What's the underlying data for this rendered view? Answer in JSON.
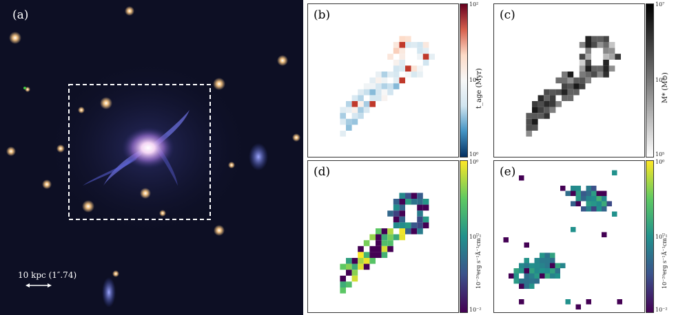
{
  "panels": {
    "a": {
      "letter": "(a)",
      "scale_bar_label": "10 kpc (1″.74)"
    },
    "b": {
      "letter": "(b)",
      "cbar_label": "t_age (Myr)",
      "cbar_ticks": [
        "10²",
        "10¹",
        "10⁰"
      ]
    },
    "c": {
      "letter": "(c)",
      "cbar_label": "M* (M⊙)",
      "cbar_ticks": [
        "10⁷",
        "10⁶",
        "10⁵"
      ]
    },
    "d": {
      "letter": "(d)",
      "cbar_label": "10⁻²⁰erg s⁻¹Å⁻¹cm⁻²",
      "cbar_ticks": [
        "10⁰",
        "10⁻¹",
        "10⁻²"
      ]
    },
    "e": {
      "letter": "(e)",
      "cbar_label": "10⁻²⁰erg s⁻¹Å⁻¹cm⁻²",
      "cbar_ticks": [
        "10⁰",
        "10⁻¹",
        "10⁻²"
      ]
    }
  },
  "colors": {
    "sky": "#0d0f24",
    "galaxy_core": "#f4d6f4",
    "tidal_blue": "#6f74e6",
    "box_dash": "#ffffff"
  }
}
